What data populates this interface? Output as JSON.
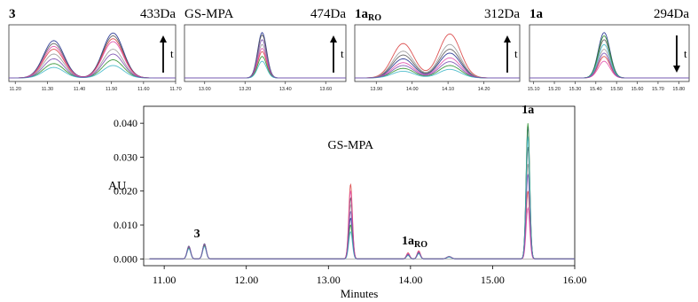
{
  "colors": {
    "traces": [
      "#1f2f8f",
      "#555555",
      "#d94040",
      "#9a9a9a",
      "#e04aa8",
      "#2e8f2e",
      "#3fb7c8",
      "#7a4fb0"
    ],
    "axis": "#000000",
    "inset_axis": "#333333"
  },
  "chart_data": [
    {
      "type": "line",
      "id": "main",
      "ylabel": "AU",
      "xlabel": "Minutes",
      "xlim": [
        10.75,
        16.0
      ],
      "ylim": [
        -0.002,
        0.045
      ],
      "xticks": [
        "11.00",
        "12.00",
        "13.00",
        "14.00",
        "15.00",
        "16.00"
      ],
      "xtick_values": [
        11.0,
        12.0,
        13.0,
        14.0,
        15.0,
        16.0
      ],
      "yticks": [
        "0.000",
        "0.010",
        "0.020",
        "0.030",
        "0.040"
      ],
      "ytick_values": [
        0.0,
        0.01,
        0.02,
        0.03,
        0.04
      ],
      "peak_labels": [
        {
          "text": "3",
          "sub": "",
          "bold": true,
          "x": 11.4
        },
        {
          "text": "GS-MPA",
          "sub": "",
          "bold": false,
          "x": 13.27
        },
        {
          "text": "1a",
          "sub": "RO",
          "bold": true,
          "x": 14.05
        },
        {
          "text": "1a",
          "sub": "",
          "bold": true,
          "x": 15.43
        }
      ],
      "peaks": [
        {
          "center": 11.3,
          "width": 0.022,
          "heights": [
            0.0035,
            0.0038,
            0.0032,
            0.0036,
            0.0034,
            0.0033,
            0.003,
            0.0037
          ]
        },
        {
          "center": 11.49,
          "width": 0.022,
          "heights": [
            0.0042,
            0.0045,
            0.0038,
            0.0043,
            0.0041,
            0.004,
            0.0036,
            0.0044
          ]
        },
        {
          "center": 13.27,
          "width": 0.022,
          "heights": [
            0.012,
            0.018,
            0.022,
            0.016,
            0.02,
            0.01,
            0.008,
            0.014
          ]
        },
        {
          "center": 13.97,
          "width": 0.02,
          "heights": [
            0.0012,
            0.0014,
            0.0018,
            0.0015,
            0.0016,
            0.0011,
            0.001,
            0.0013
          ]
        },
        {
          "center": 14.1,
          "width": 0.02,
          "heights": [
            0.0018,
            0.002,
            0.0024,
            0.0021,
            0.0022,
            0.0017,
            0.0015,
            0.0019
          ]
        },
        {
          "center": 14.47,
          "width": 0.03,
          "heights": [
            0.0006,
            0.0007,
            0.0006,
            0.0007,
            0.0006,
            0.0006,
            0.0005,
            0.0007
          ]
        },
        {
          "center": 15.43,
          "width": 0.022,
          "heights": [
            0.039,
            0.033,
            0.02,
            0.028,
            0.015,
            0.04,
            0.036,
            0.025
          ]
        }
      ]
    },
    {
      "type": "line",
      "id": "inset-3",
      "title": "3",
      "title_sub": "",
      "title_bold": true,
      "mass": "433Da",
      "arrow": "up",
      "arrow_label": "t",
      "xlim": [
        11.18,
        11.7
      ],
      "xticks": [
        "11.20",
        "11.30",
        "11.40",
        "11.50",
        "11.60",
        "11.70"
      ],
      "xtick_values": [
        11.2,
        11.3,
        11.4,
        11.5,
        11.6,
        11.7
      ],
      "peaks": [
        {
          "center": 11.32,
          "width": 0.032,
          "heights": [
            0.78,
            0.72,
            0.6,
            0.5,
            0.66,
            0.3,
            0.22,
            0.4
          ]
        },
        {
          "center": 11.505,
          "width": 0.032,
          "heights": [
            0.94,
            0.88,
            0.82,
            0.6,
            0.76,
            0.38,
            0.26,
            0.5
          ]
        }
      ]
    },
    {
      "type": "line",
      "id": "inset-gs-mpa",
      "title": "GS-MPA",
      "title_sub": "",
      "title_bold": false,
      "mass": "474Da",
      "arrow": "up",
      "arrow_label": "t",
      "xlim": [
        12.9,
        13.7
      ],
      "xticks": [
        "13.00",
        "13.20",
        "13.40",
        "13.60"
      ],
      "xtick_values": [
        13.0,
        13.2,
        13.4,
        13.6
      ],
      "peaks": [
        {
          "center": 13.285,
          "width": 0.022,
          "heights": [
            0.95,
            0.9,
            0.55,
            0.7,
            0.62,
            0.45,
            0.35,
            0.8
          ]
        }
      ]
    },
    {
      "type": "line",
      "id": "inset-1aro",
      "title": "1a",
      "title_sub": "RO",
      "title_bold": true,
      "mass": "312Da",
      "arrow": "up",
      "arrow_label": "t",
      "xlim": [
        13.84,
        14.3
      ],
      "xticks": [
        "13.90",
        "14.00",
        "14.10",
        "14.20"
      ],
      "xtick_values": [
        13.9,
        14.0,
        14.1,
        14.2
      ],
      "peaks": [
        {
          "center": 13.975,
          "width": 0.03,
          "heights": [
            0.4,
            0.48,
            0.72,
            0.56,
            0.32,
            0.2,
            0.14,
            0.26
          ]
        },
        {
          "center": 14.105,
          "width": 0.03,
          "heights": [
            0.52,
            0.6,
            0.92,
            0.7,
            0.42,
            0.26,
            0.18,
            0.34
          ]
        }
      ]
    },
    {
      "type": "line",
      "id": "inset-1a",
      "title": "1a",
      "title_sub": "",
      "title_bold": true,
      "mass": "294Da",
      "arrow": "down",
      "arrow_label": "t",
      "xlim": [
        15.08,
        15.85
      ],
      "xticks": [
        "15.10",
        "15.20",
        "15.30",
        "15.40",
        "15.50",
        "15.60",
        "15.70",
        "15.80"
      ],
      "xtick_values": [
        15.1,
        15.2,
        15.3,
        15.4,
        15.5,
        15.6,
        15.7,
        15.8
      ],
      "peaks": [
        {
          "center": 15.44,
          "width": 0.028,
          "heights": [
            0.95,
            0.8,
            0.45,
            0.6,
            0.35,
            0.88,
            0.7,
            0.52
          ]
        }
      ]
    }
  ]
}
